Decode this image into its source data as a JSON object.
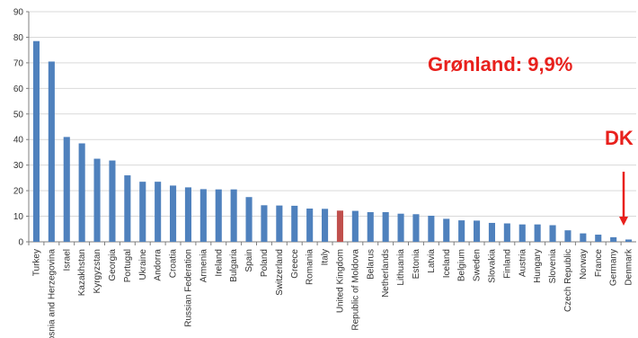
{
  "colors": {
    "bar": "#4f81bd",
    "highlight_bar": "#c0504d",
    "annotation": "#e8201c",
    "grid": "#d9d9d9",
    "axis": "#7f7f7f"
  },
  "annotations": {
    "greenland_label": "Grønland: 9,9%",
    "dk_label": "DK"
  },
  "chart_data": {
    "type": "bar",
    "title": "",
    "xlabel": "",
    "ylabel": "",
    "ylim": [
      0,
      90
    ],
    "yticks": [
      0,
      10,
      20,
      30,
      40,
      50,
      60,
      70,
      80,
      90
    ],
    "grid": true,
    "legend": "none",
    "highlight_category": "United Kingdom",
    "arrow_target_category": "Denmark",
    "categories": [
      "Turkey",
      "Bosnia and Herzegovina",
      "Israel",
      "Kazakhstan",
      "Kyrgyzstan",
      "Georgia",
      "Portugal",
      "Ukraine",
      "Andorra",
      "Croatia",
      "Russian Federation",
      "Armenia",
      "Ireland",
      "Bulgaria",
      "Spain",
      "Poland",
      "Switzerland",
      "Greece",
      "Romania",
      "Italy",
      "United Kingdom",
      "Republic of Moldova",
      "Belarus",
      "Netherlands",
      "Lithuania",
      "Estonia",
      "Latvia",
      "Iceland",
      "Belgium",
      "Sweden",
      "Slovakia",
      "Finland",
      "Austria",
      "Hungary",
      "Slovenia",
      "Czech Republic",
      "Norway",
      "France",
      "Germany",
      "Denmark"
    ],
    "values": [
      78.5,
      70.5,
      41,
      38.5,
      32.5,
      31.8,
      26,
      23.5,
      23.5,
      22,
      21.3,
      20.6,
      20.5,
      20.5,
      17.5,
      14.3,
      14.2,
      14.1,
      13,
      12.9,
      12.2,
      12.1,
      11.6,
      11.6,
      11,
      10.8,
      10.2,
      9,
      8.4,
      8.3,
      7.4,
      7.2,
      6.8,
      6.8,
      6.5,
      4.5,
      3.3,
      2.8,
      1.8,
      0.9
    ]
  }
}
